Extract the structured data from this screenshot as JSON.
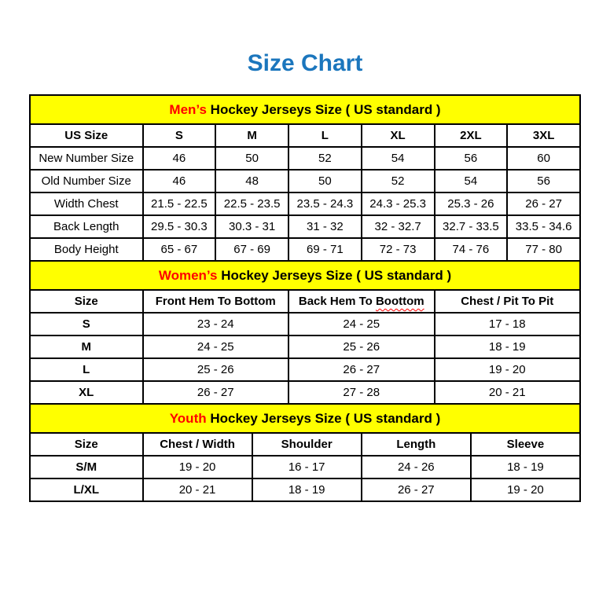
{
  "page": {
    "title": "Size Chart"
  },
  "colors": {
    "title_blue": "#1b76bd",
    "section_bar_yellow": "#ffff00",
    "accent_red": "#ff0000",
    "border_black": "#000000"
  },
  "sections": [
    {
      "id": "mens",
      "heading_highlight": "Men’s",
      "heading_rest": " Hockey Jerseys Size ( US standard )",
      "columns": [
        {
          "text": "US Size"
        },
        {
          "text": "S"
        },
        {
          "text": "M"
        },
        {
          "text": "L"
        },
        {
          "text": "XL"
        },
        {
          "text": "2XL"
        },
        {
          "text": "3XL"
        }
      ],
      "rows": [
        {
          "label": "New Number Size",
          "values": [
            "46",
            "50",
            "52",
            "54",
            "56",
            "60"
          ]
        },
        {
          "label": "Old Number Size",
          "values": [
            "46",
            "48",
            "50",
            "52",
            "54",
            "56"
          ]
        },
        {
          "label": "Width Chest",
          "values": [
            "21.5 - 22.5",
            "22.5 - 23.5",
            "23.5 - 24.3",
            "24.3 - 25.3",
            "25.3 - 26",
            "26 - 27"
          ]
        },
        {
          "label": "Back Length",
          "values": [
            "29.5 - 30.3",
            "30.3 - 31",
            "31 - 32",
            "32 - 32.7",
            "32.7 - 33.5",
            "33.5 - 34.6"
          ]
        },
        {
          "label": "Body Height",
          "values": [
            "65 - 67",
            "67 - 69",
            "69 - 71",
            "72 - 73",
            "74 - 76",
            "77 - 80"
          ]
        }
      ]
    },
    {
      "id": "womens",
      "heading_highlight": "Women’s",
      "heading_rest": " Hockey Jerseys Size ( US standard )",
      "columns": [
        {
          "text": "Size"
        },
        {
          "text": "Front Hem To Bottom"
        },
        {
          "text": "Back Hem To ",
          "misspelled_text": "Boottom"
        },
        {
          "text": "Chest / Pit To Pit"
        }
      ],
      "rows": [
        {
          "label": "S",
          "values": [
            "23 - 24",
            "24 - 25",
            "17 - 18"
          ]
        },
        {
          "label": "M",
          "values": [
            "24 - 25",
            "25 - 26",
            "18 - 19"
          ]
        },
        {
          "label": "L",
          "values": [
            "25 - 26",
            "26 - 27",
            "19 - 20"
          ]
        },
        {
          "label": "XL",
          "values": [
            "26 - 27",
            "27 - 28",
            "20 - 21"
          ]
        }
      ]
    },
    {
      "id": "youth",
      "heading_highlight": "Youth",
      "heading_rest": " Hockey Jerseys Size ( US standard )",
      "columns": [
        {
          "text": "Size"
        },
        {
          "text": "Chest / Width"
        },
        {
          "text": "Shoulder"
        },
        {
          "text": "Length"
        },
        {
          "text": "Sleeve"
        }
      ],
      "rows": [
        {
          "label": "S/M",
          "values": [
            "19 - 20",
            "16 - 17",
            "24 - 26",
            "18 - 19"
          ]
        },
        {
          "label": "L/XL",
          "values": [
            "20 - 21",
            "18 - 19",
            "26 - 27",
            "19 - 20"
          ]
        }
      ]
    }
  ]
}
